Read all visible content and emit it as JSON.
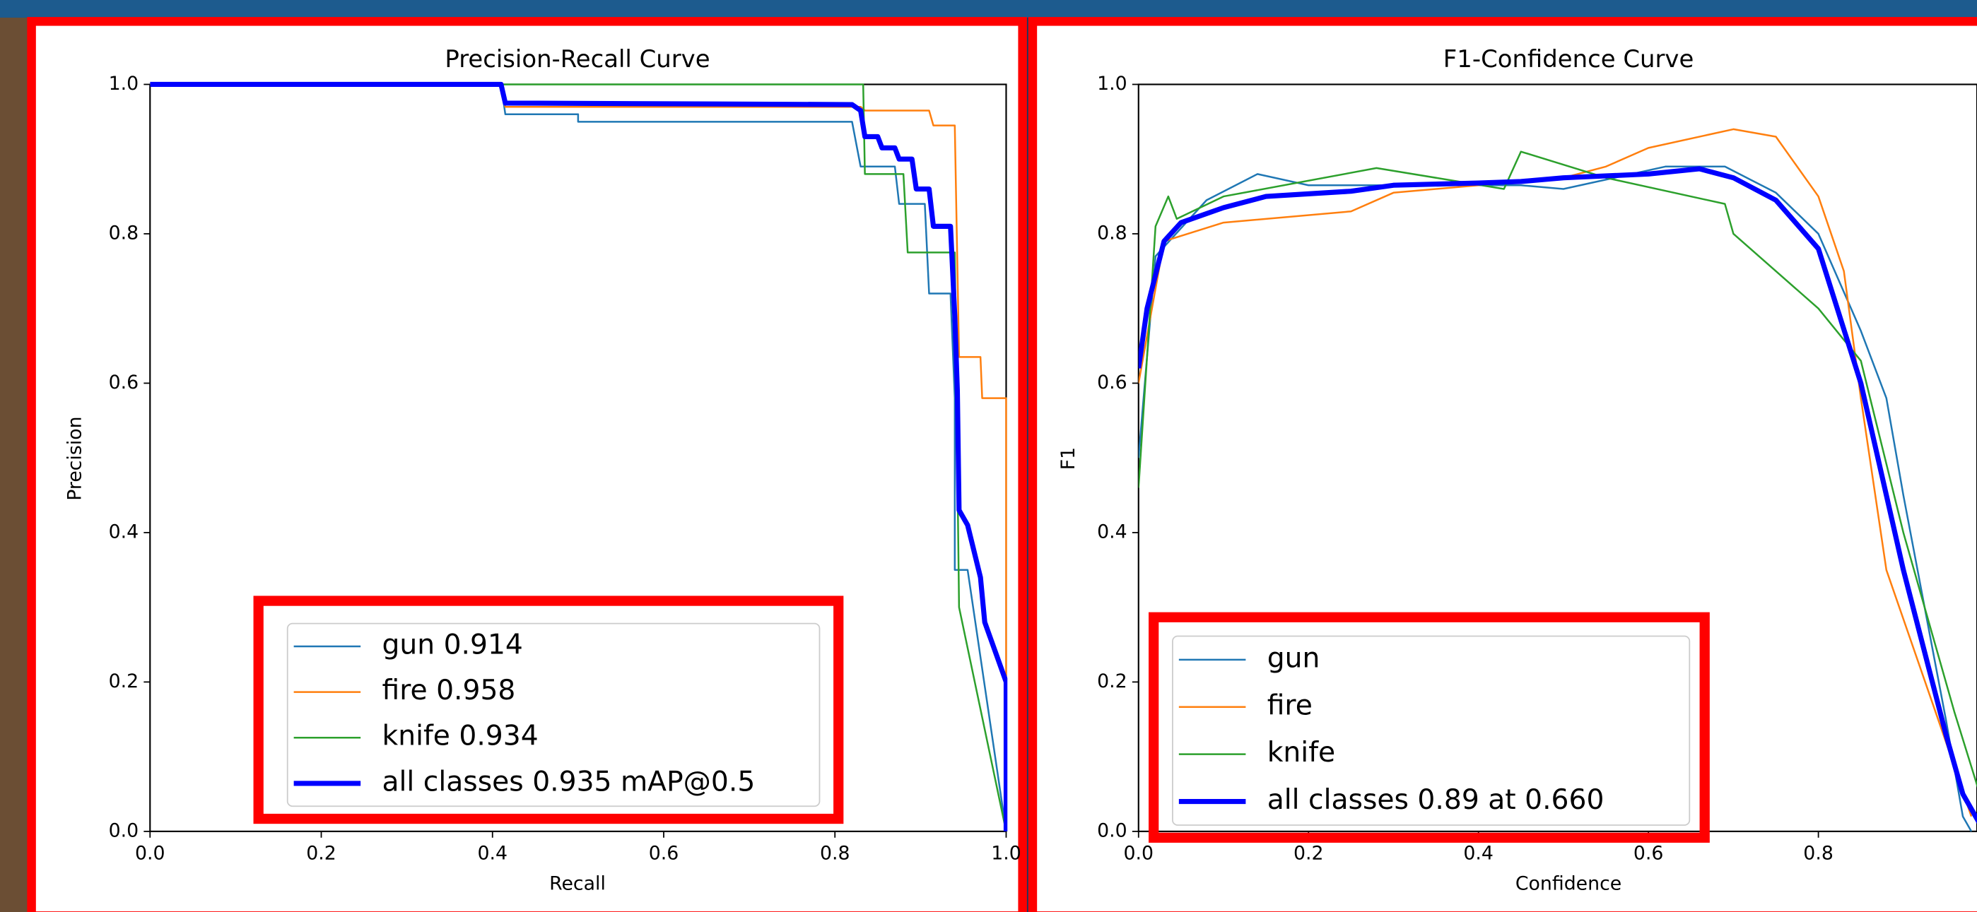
{
  "chart_data": [
    {
      "type": "line",
      "title": "Precision-Recall Curve",
      "xlabel": "Recall",
      "ylabel": "Precision",
      "xlim": [
        0,
        1
      ],
      "ylim": [
        0,
        1
      ],
      "xticks": [
        {
          "value": 0,
          "label": "0.0"
        },
        0.2,
        0.4,
        0.6,
        0.8,
        {
          "value": 1,
          "label": "1.0"
        }
      ],
      "yticks": [
        {
          "value": 0,
          "label": "0.0"
        },
        0.2,
        0.4,
        0.6,
        0.8,
        {
          "value": 1,
          "label": "1.0"
        }
      ],
      "legend": "lower left",
      "series": [
        {
          "name": "gun 0.914",
          "color": "#1f77b4",
          "width": 1.4,
          "x": [
            0,
            0.41,
            0.415,
            0.5,
            0.5,
            0.82,
            0.83,
            0.87,
            0.875,
            0.905,
            0.91,
            0.935,
            0.94,
            0.94,
            0.955,
            1.0
          ],
          "values": [
            1,
            1,
            0.96,
            0.96,
            0.95,
            0.95,
            0.89,
            0.89,
            0.84,
            0.84,
            0.72,
            0.72,
            0.58,
            0.35,
            0.35,
            0
          ]
        },
        {
          "name": "fire 0.958",
          "color": "#ff7f0e",
          "width": 1.4,
          "x": [
            0,
            0.41,
            0.415,
            0.83,
            0.835,
            0.91,
            0.915,
            0.94,
            0.945,
            0.97,
            0.972,
            1.0,
            1.0
          ],
          "values": [
            1,
            1,
            0.97,
            0.97,
            0.965,
            0.965,
            0.945,
            0.945,
            0.635,
            0.635,
            0.58,
            0.58,
            0
          ]
        },
        {
          "name": "knife 0.934",
          "color": "#2ca02c",
          "width": 1.4,
          "x": [
            0,
            0.833,
            0.835,
            0.88,
            0.885,
            0.94,
            0.945,
            1.0
          ],
          "values": [
            1,
            1,
            0.88,
            0.88,
            0.775,
            0.775,
            0.3,
            0
          ]
        },
        {
          "name": "all classes 0.935 mAP@0.5",
          "color": "#0000ff",
          "width": 4,
          "x": [
            0,
            0.41,
            0.415,
            0.82,
            0.83,
            0.835,
            0.85,
            0.855,
            0.87,
            0.875,
            0.89,
            0.895,
            0.91,
            0.915,
            0.935,
            0.94,
            0.943,
            0.945,
            0.955,
            0.97,
            0.975,
            1.0,
            1.0
          ],
          "values": [
            1,
            1,
            0.975,
            0.973,
            0.965,
            0.93,
            0.93,
            0.915,
            0.915,
            0.9,
            0.9,
            0.86,
            0.86,
            0.81,
            0.81,
            0.69,
            0.59,
            0.43,
            0.41,
            0.34,
            0.28,
            0.2,
            0
          ]
        }
      ]
    },
    {
      "type": "line",
      "title": "F1-Confidence Curve",
      "xlabel": "Confidence",
      "ylabel": "F1",
      "xlim": [
        0,
        1
      ],
      "ylim": [
        0,
        1
      ],
      "xticks": [
        {
          "value": 0,
          "label": "0.0"
        },
        0.2,
        0.4,
        0.6,
        0.8
      ],
      "yticks": [
        {
          "value": 0,
          "label": "0.0"
        },
        0.2,
        0.4,
        0.6,
        0.8,
        {
          "value": 1,
          "label": "1.0"
        }
      ],
      "legend": "lower left",
      "series": [
        {
          "name": "gun",
          "color": "#1f77b4",
          "width": 1.4,
          "x": [
            0,
            0.02,
            0.08,
            0.14,
            0.2,
            0.45,
            0.5,
            0.62,
            0.69,
            0.75,
            0.8,
            0.85,
            0.88,
            0.9,
            0.95,
            0.97,
            0.98
          ],
          "values": [
            0.5,
            0.77,
            0.845,
            0.88,
            0.865,
            0.865,
            0.86,
            0.89,
            0.89,
            0.855,
            0.8,
            0.67,
            0.58,
            0.45,
            0.15,
            0.02,
            0
          ]
        },
        {
          "name": "fire",
          "color": "#ff7f0e",
          "width": 1.4,
          "x": [
            0,
            0.03,
            0.1,
            0.25,
            0.3,
            0.5,
            0.55,
            0.6,
            0.7,
            0.75,
            0.8,
            0.83,
            0.85,
            0.88,
            0.95,
            0.98
          ],
          "values": [
            0.6,
            0.79,
            0.815,
            0.83,
            0.855,
            0.875,
            0.89,
            0.915,
            0.94,
            0.93,
            0.85,
            0.75,
            0.58,
            0.35,
            0.12,
            0.02
          ]
        },
        {
          "name": "knife",
          "color": "#2ca02c",
          "width": 1.4,
          "x": [
            0,
            0.02,
            0.035,
            0.045,
            0.1,
            0.28,
            0.43,
            0.45,
            0.55,
            0.69,
            0.7,
            0.8,
            0.85,
            0.9,
            0.96,
            0.99
          ],
          "values": [
            0.46,
            0.81,
            0.85,
            0.82,
            0.85,
            0.888,
            0.86,
            0.91,
            0.875,
            0.84,
            0.8,
            0.7,
            0.63,
            0.4,
            0.16,
            0.05
          ]
        },
        {
          "name": "all classes 0.89 at 0.660",
          "color": "#0000ff",
          "width": 4,
          "x": [
            0,
            0.01,
            0.03,
            0.05,
            0.1,
            0.15,
            0.25,
            0.3,
            0.4,
            0.45,
            0.5,
            0.6,
            0.66,
            0.7,
            0.75,
            0.8,
            0.85,
            0.9,
            0.95,
            0.97,
            0.99
          ],
          "values": [
            0.62,
            0.7,
            0.79,
            0.815,
            0.835,
            0.85,
            0.857,
            0.865,
            0.868,
            0.87,
            0.875,
            0.88,
            0.887,
            0.875,
            0.845,
            0.78,
            0.6,
            0.35,
            0.13,
            0.05,
            0.01
          ]
        }
      ]
    }
  ]
}
